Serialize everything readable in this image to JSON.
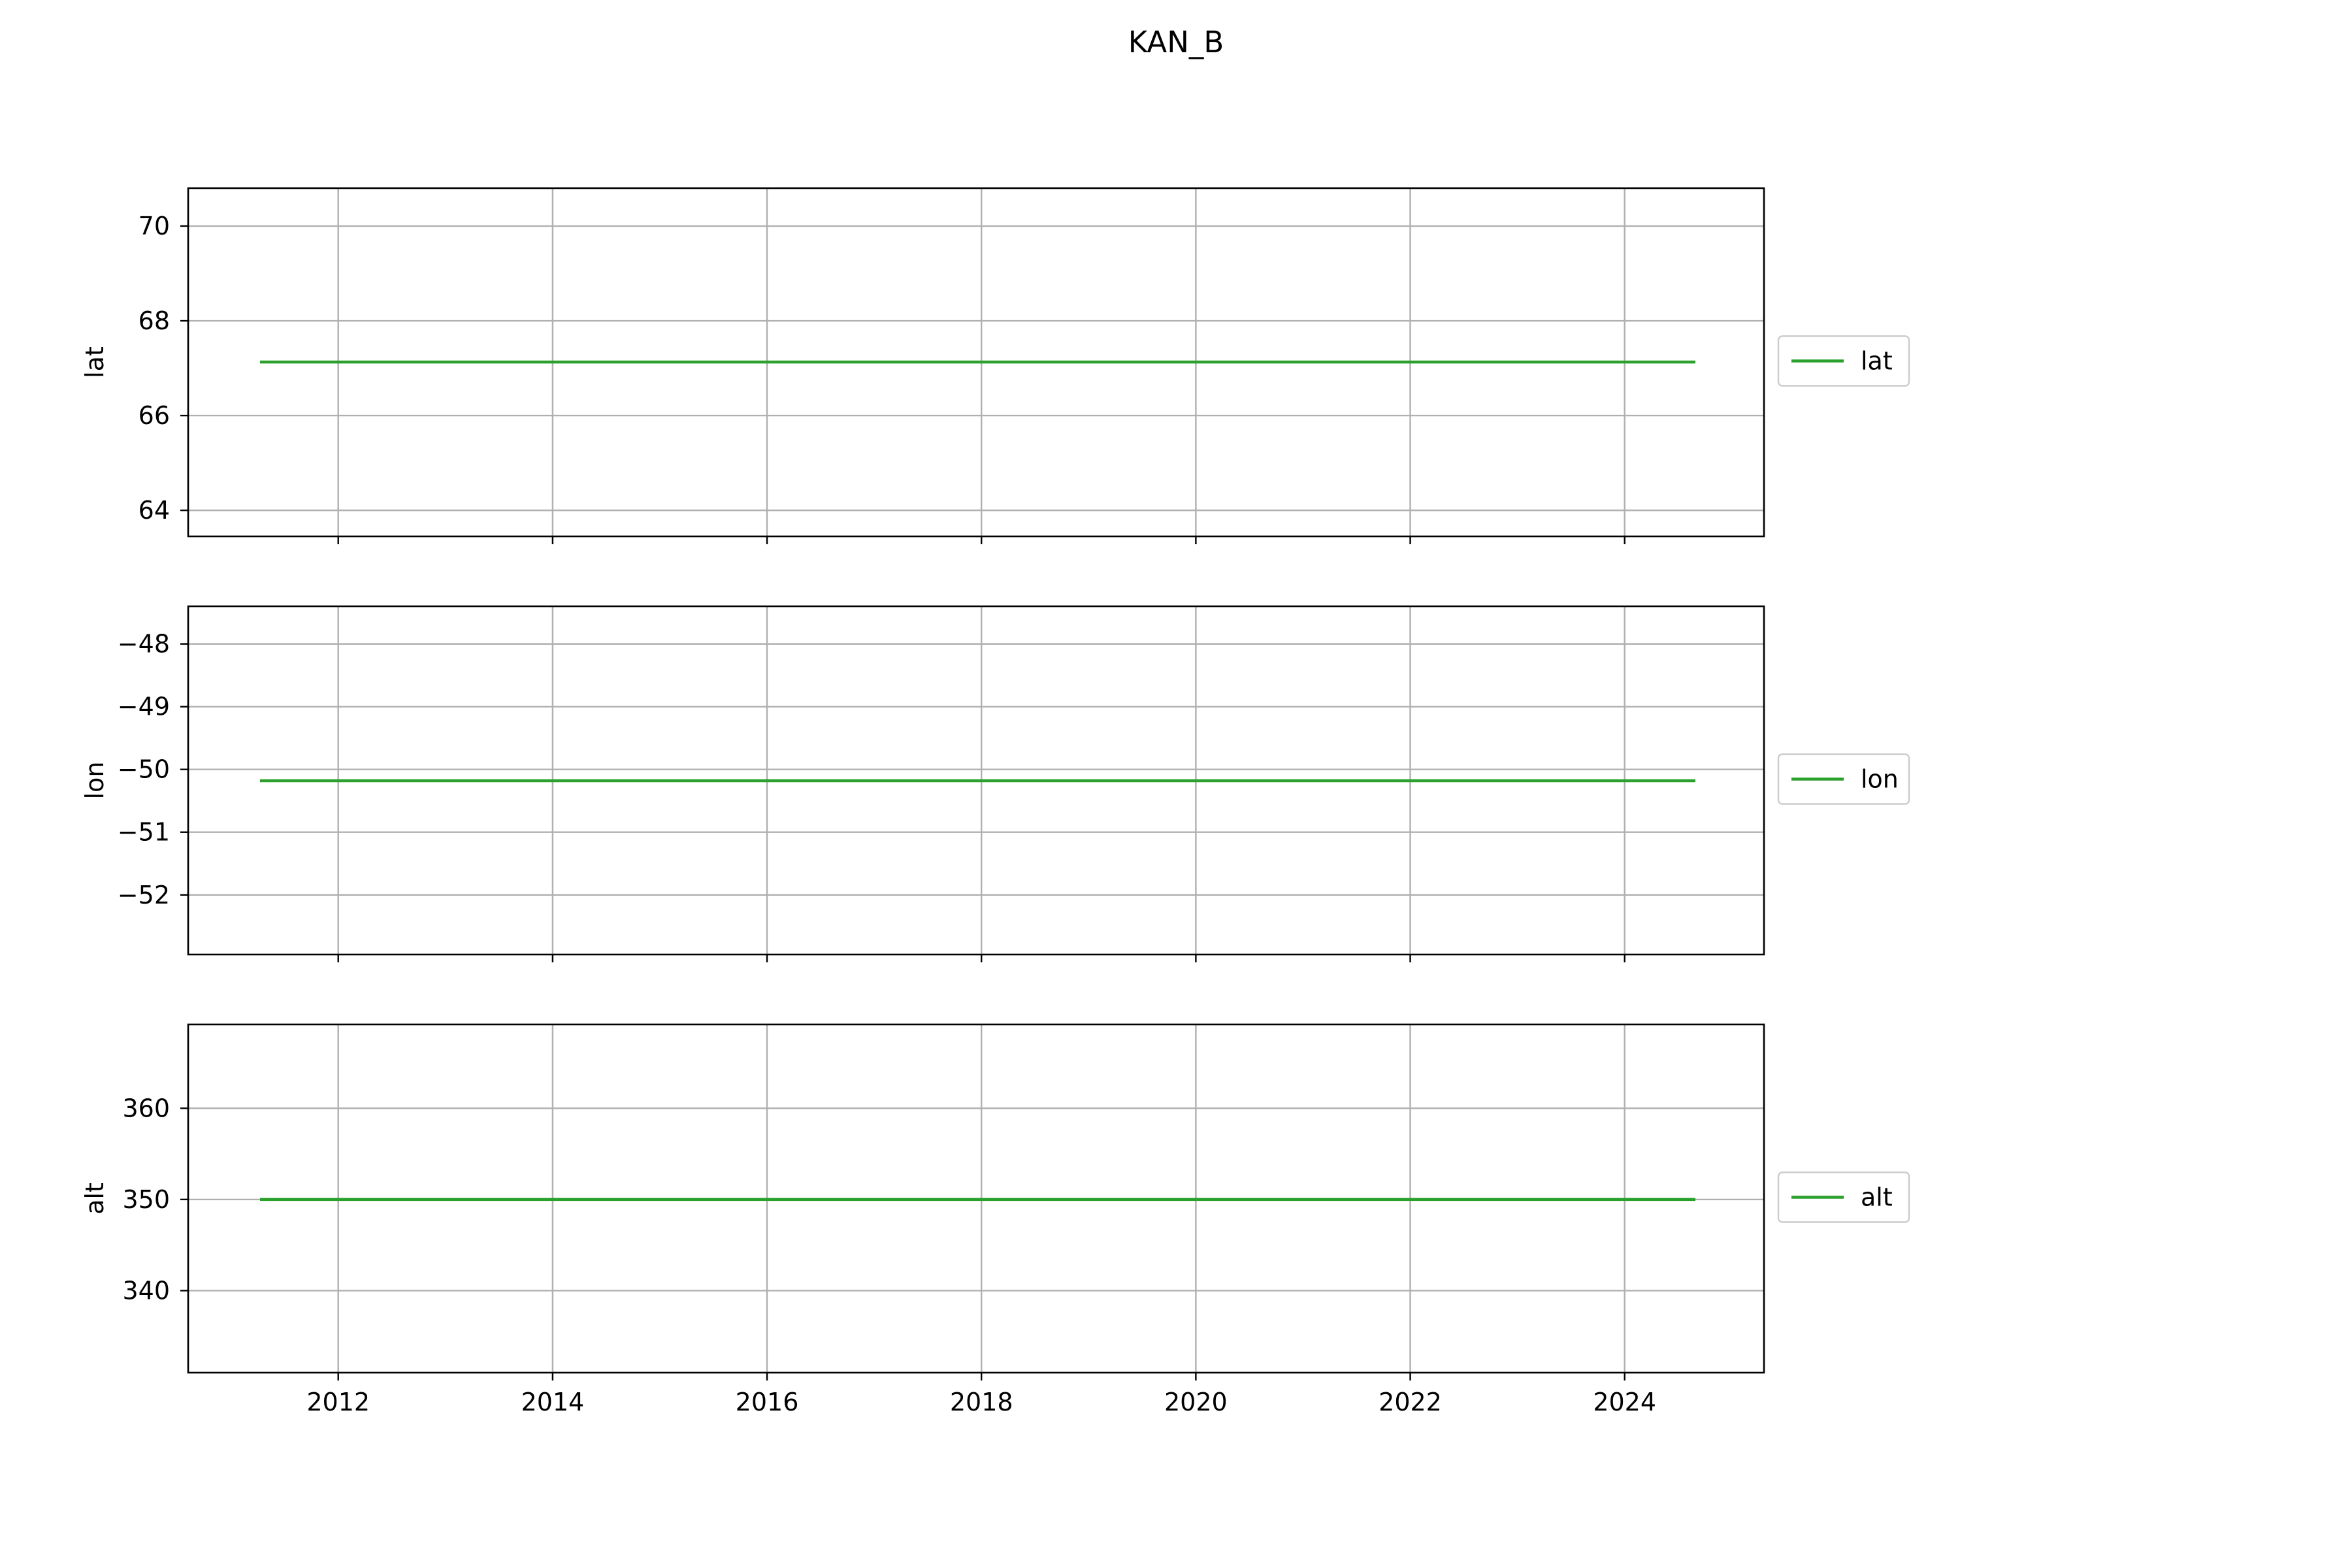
{
  "title": "KAN_B",
  "colors": {
    "line": "#2ca02c",
    "grid": "#b0b0b0",
    "frame": "#000000",
    "legend_border": "#cccccc"
  },
  "chart_data": [
    {
      "type": "line",
      "ylabel": "lat",
      "xlim": [
        2010.6,
        2025.3
      ],
      "ylim": [
        63.45,
        70.8
      ],
      "yticks": [
        64,
        66,
        68,
        70
      ],
      "ytick_labels": [
        "64",
        "66",
        "68",
        "70"
      ],
      "xticks": [
        2012,
        2014,
        2016,
        2018,
        2020,
        2022,
        2024
      ],
      "grid": true,
      "legend": "right",
      "series": [
        {
          "name": "lat",
          "x": [
            2011.27,
            2024.66
          ],
          "y": [
            67.13,
            67.13
          ]
        }
      ]
    },
    {
      "type": "line",
      "ylabel": "lon",
      "xlim": [
        2010.6,
        2025.3
      ],
      "ylim": [
        -52.95,
        -47.4
      ],
      "yticks": [
        -52,
        -51,
        -50,
        -49,
        -48
      ],
      "ytick_labels": [
        "−52",
        "−51",
        "−50",
        "−49",
        "−48"
      ],
      "xticks": [
        2012,
        2014,
        2016,
        2018,
        2020,
        2022,
        2024
      ],
      "grid": true,
      "legend": "right",
      "series": [
        {
          "name": "lon",
          "x": [
            2011.27,
            2024.66
          ],
          "y": [
            -50.18,
            -50.18
          ]
        }
      ]
    },
    {
      "type": "line",
      "ylabel": "alt",
      "xlim": [
        2010.6,
        2025.3
      ],
      "ylim": [
        331.0,
        369.2
      ],
      "yticks": [
        340,
        350,
        360
      ],
      "ytick_labels": [
        "340",
        "350",
        "360"
      ],
      "xticks": [
        2012,
        2014,
        2016,
        2018,
        2020,
        2022,
        2024
      ],
      "xtick_labels": [
        "2012",
        "2014",
        "2016",
        "2018",
        "2020",
        "2022",
        "2024"
      ],
      "grid": true,
      "legend": "right",
      "series": [
        {
          "name": "alt",
          "x": [
            2011.27,
            2024.66
          ],
          "y": [
            350,
            350
          ]
        }
      ]
    }
  ]
}
